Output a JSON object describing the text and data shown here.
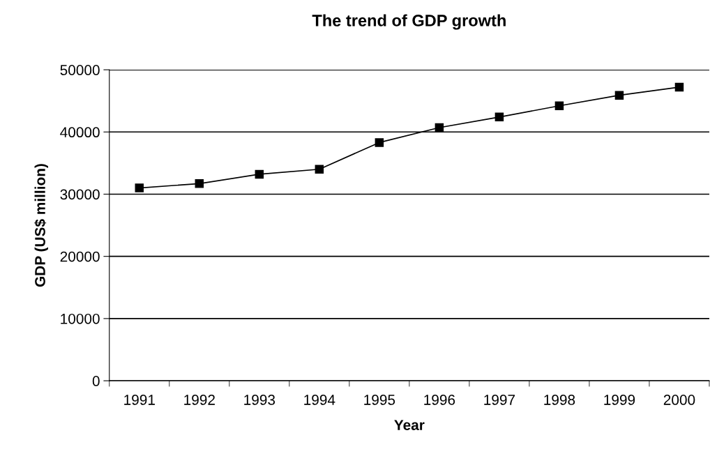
{
  "chart_data": {
    "type": "line",
    "title": "The trend of GDP growth",
    "xlabel": "Year",
    "ylabel": "GDP (US$ million)",
    "categories": [
      "1991",
      "1992",
      "1993",
      "1994",
      "1995",
      "1996",
      "1997",
      "1998",
      "1999",
      "2000"
    ],
    "series": [
      {
        "color": "#000000",
        "values": [
          31000,
          31700,
          33200,
          34000,
          38300,
          40700,
          42400,
          44200,
          45900,
          47200
        ]
      }
    ],
    "ylim": [
      0,
      50000
    ],
    "yticks": [
      0,
      10000,
      20000,
      30000,
      40000,
      50000
    ],
    "grid": "y",
    "legend": false,
    "marker": "square",
    "line_style": "solid"
  }
}
